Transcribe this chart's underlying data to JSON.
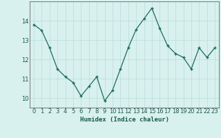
{
  "x": [
    0,
    1,
    2,
    3,
    4,
    5,
    6,
    7,
    8,
    9,
    10,
    11,
    12,
    13,
    14,
    15,
    16,
    17,
    18,
    19,
    20,
    21,
    22,
    23
  ],
  "y": [
    13.8,
    13.5,
    12.6,
    11.5,
    11.1,
    10.8,
    10.1,
    10.6,
    11.1,
    9.85,
    10.4,
    11.5,
    12.6,
    13.55,
    14.1,
    14.65,
    13.6,
    12.7,
    12.3,
    12.1,
    11.5,
    12.6,
    12.1,
    12.6
  ],
  "line_color": "#1a6b5a",
  "marker": "+",
  "background_color": "#d8f0ee",
  "grid_color": "#b8ddd8",
  "xlabel": "Humidex (Indice chaleur)",
  "ylim": [
    9.5,
    15.0
  ],
  "xlim": [
    -0.5,
    23.5
  ],
  "yticks": [
    10,
    11,
    12,
    13,
    14
  ],
  "xticks": [
    0,
    1,
    2,
    3,
    4,
    5,
    6,
    7,
    8,
    9,
    10,
    11,
    12,
    13,
    14,
    15,
    16,
    17,
    18,
    19,
    20,
    21,
    22,
    23
  ],
  "label_fontsize": 6.5,
  "tick_fontsize": 6.0
}
